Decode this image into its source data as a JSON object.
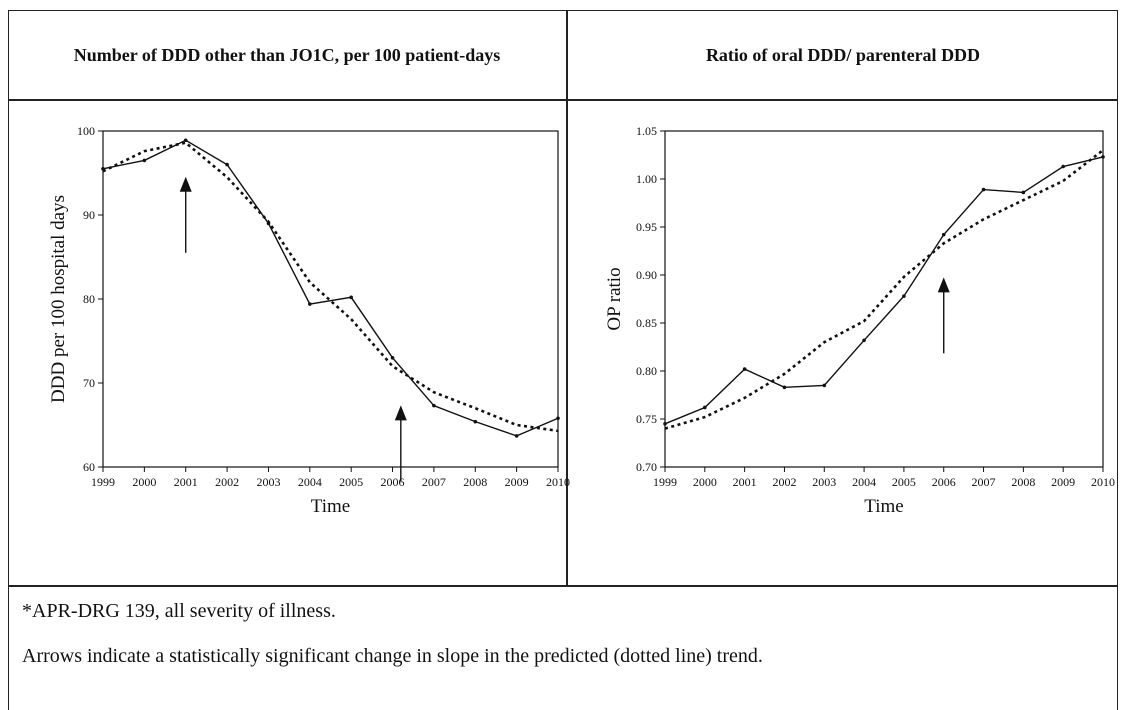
{
  "headers": {
    "left": "Number of DDD other than JO1C, per 100 patient-days",
    "right": "Ratio of oral DDD/ parenteral DDD"
  },
  "footnotes": {
    "line1": "*APR-DRG 139, all severity of illness.",
    "line2": "Arrows indicate a statistically significant change in slope in the predicted (dotted line) trend."
  },
  "chart_data": [
    {
      "type": "line",
      "ylabel": "DDD per 100 hospital days",
      "xlabel": "Time",
      "x": [
        1999,
        2000,
        2001,
        2002,
        2003,
        2004,
        2005,
        2006,
        2007,
        2008,
        2009,
        2010
      ],
      "xlim": [
        1999,
        2010
      ],
      "ylim": [
        60,
        100
      ],
      "yticks": [
        60,
        70,
        80,
        90,
        100
      ],
      "ytick_labels": [
        "60",
        "70",
        "80",
        "90",
        "100"
      ],
      "series": [
        {
          "style": "solid",
          "values": [
            95.5,
            96.5,
            98.9,
            96.0,
            89.0,
            79.4,
            80.2,
            73.0,
            67.3,
            65.4,
            63.7,
            65.8
          ]
        },
        {
          "style": "dotted",
          "values": [
            95.2,
            97.6,
            98.6,
            94.5,
            89.2,
            82.0,
            77.6,
            72.0,
            68.9,
            67.0,
            65.0,
            64.3
          ]
        }
      ],
      "arrows": [
        2001,
        2006.2
      ],
      "grid": false
    },
    {
      "type": "line",
      "ylabel": "OP ratio",
      "xlabel": "Time",
      "x": [
        1999,
        2000,
        2001,
        2002,
        2003,
        2004,
        2005,
        2006,
        2007,
        2008,
        2009,
        2010
      ],
      "xlim": [
        1999,
        2010
      ],
      "ylim": [
        0.7,
        1.05
      ],
      "yticks": [
        0.7,
        0.75,
        0.8,
        0.85,
        0.9,
        0.95,
        1.0,
        1.05
      ],
      "ytick_labels": [
        "0.70",
        "0.75",
        "0.80",
        "0.85",
        "0.90",
        "0.95",
        "1.00",
        "1.05"
      ],
      "series": [
        {
          "style": "solid",
          "values": [
            0.745,
            0.762,
            0.802,
            0.783,
            0.785,
            0.832,
            0.878,
            0.942,
            0.989,
            0.986,
            1.013,
            1.023
          ]
        },
        {
          "style": "dotted",
          "values": [
            0.74,
            0.752,
            0.772,
            0.797,
            0.83,
            0.852,
            0.898,
            0.933,
            0.958,
            0.978,
            0.998,
            1.03
          ]
        }
      ],
      "arrows": [
        2006
      ],
      "grid": false
    }
  ]
}
